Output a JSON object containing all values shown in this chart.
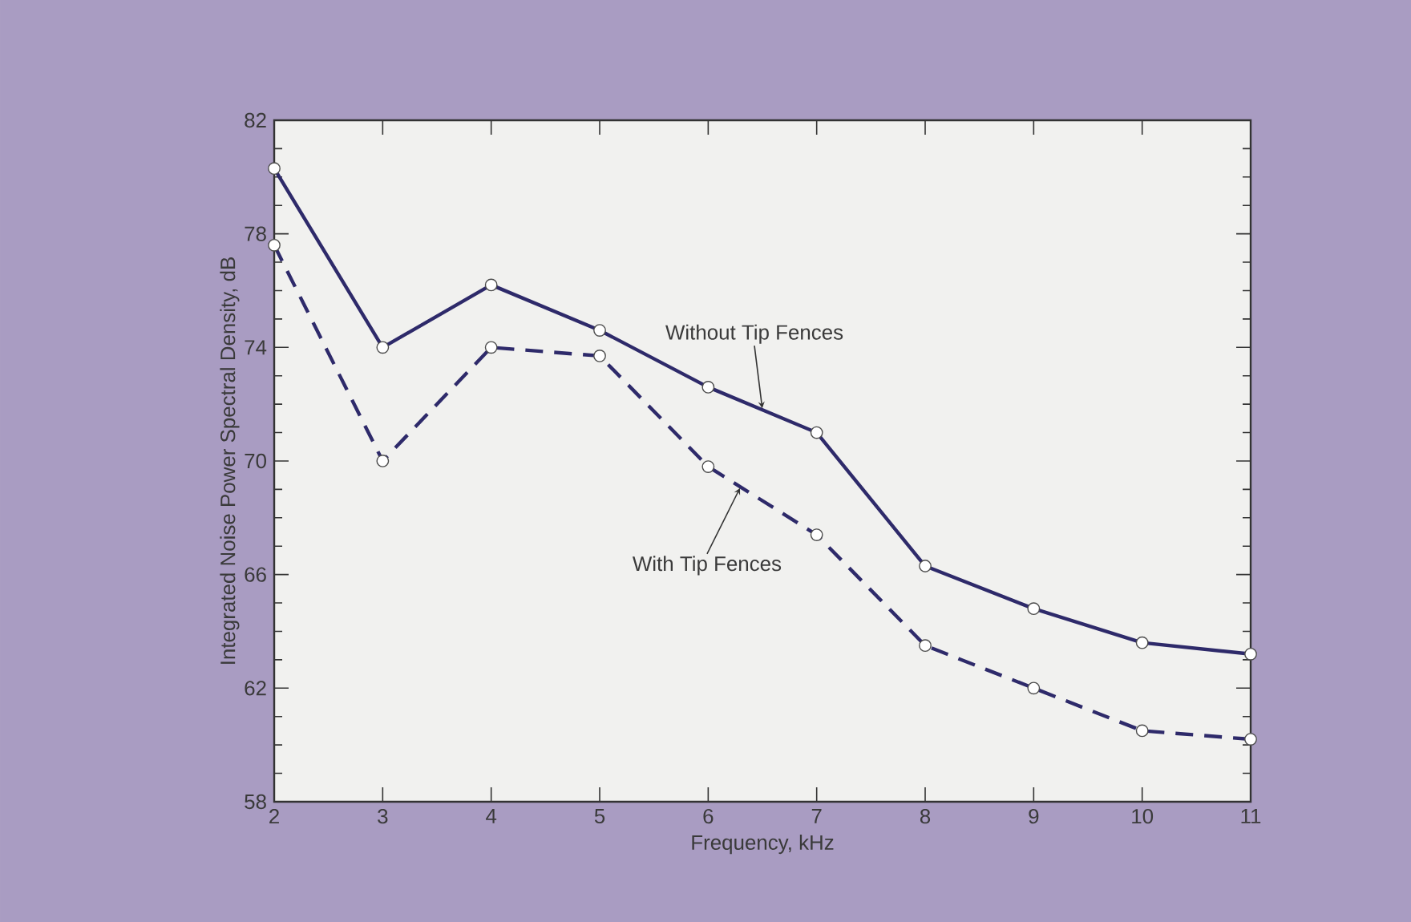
{
  "chart_data": {
    "type": "line",
    "xlabel": "Frequency, kHz",
    "ylabel": "Integrated Noise Power Spectral Density, dB",
    "x": [
      2,
      3,
      4,
      5,
      6,
      7,
      8,
      9,
      10,
      11
    ],
    "series": [
      {
        "color": "#2e2a6a",
        "line_style": "solid",
        "values": [
          80.3,
          74.0,
          76.2,
          74.6,
          72.6,
          71.0,
          66.3,
          64.8,
          63.6,
          63.2
        ]
      },
      {
        "color": "#2e2a6a",
        "line_style": "dashed",
        "values": [
          77.6,
          70.0,
          74.0,
          73.7,
          69.8,
          67.4,
          63.5,
          62.0,
          60.5,
          60.2
        ]
      }
    ],
    "annotations": [
      {
        "text": "Without Tip Fences",
        "x": 6.5,
        "y": 71.8
      },
      {
        "text": "With Tip Fences",
        "x": 6.3,
        "y": 69.1
      }
    ],
    "xlim": [
      2,
      11
    ],
    "xticks": [
      2,
      3,
      4,
      5,
      6,
      7,
      8,
      9,
      10,
      11
    ],
    "ylim": [
      58,
      82
    ],
    "yticks": [
      58,
      62,
      66,
      70,
      74,
      78,
      82
    ],
    "marker": "circle"
  }
}
